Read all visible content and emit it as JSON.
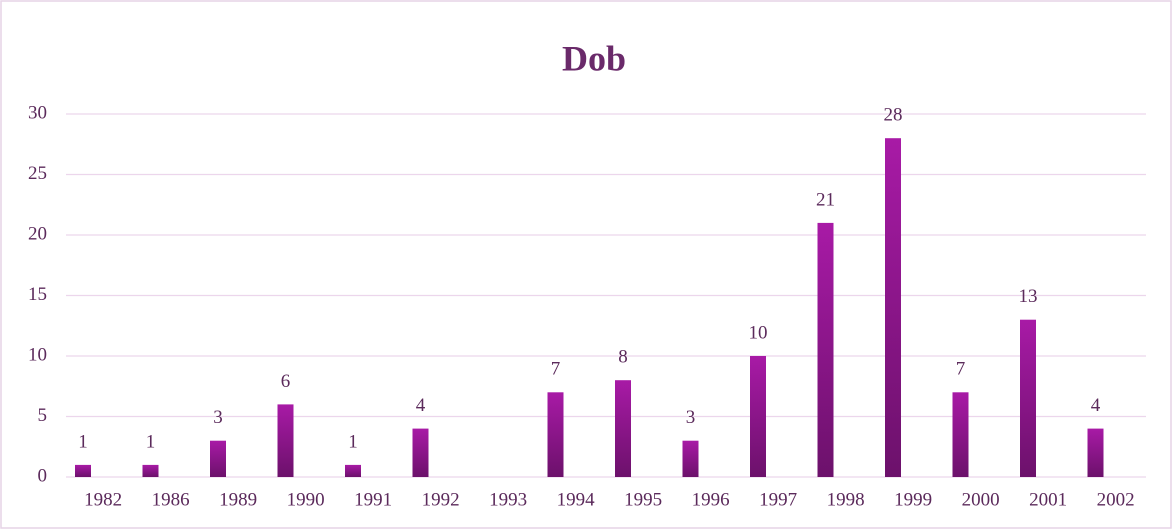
{
  "chart_data": {
    "type": "bar",
    "title": "Dob",
    "categories": [
      "1982",
      "1986",
      "1989",
      "1990",
      "1991",
      "1992",
      "1993",
      "1994",
      "1995",
      "1996",
      "1997",
      "1998",
      "1999",
      "2000",
      "2001",
      "2002"
    ],
    "values": [
      1,
      1,
      3,
      6,
      1,
      4,
      null,
      7,
      8,
      3,
      10,
      21,
      28,
      7,
      13,
      4
    ],
    "color": "#9b189a",
    "ylim": [
      0,
      30
    ],
    "yticks": [
      0,
      5,
      10,
      15,
      20,
      25,
      30
    ],
    "grid": true
  }
}
